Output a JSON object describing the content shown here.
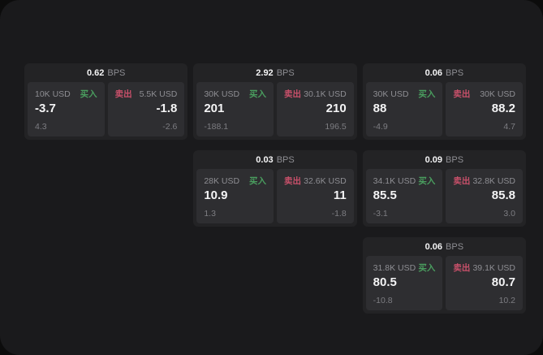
{
  "labels": {
    "bps_unit": "BPS",
    "buy": "买入",
    "sell": "卖出"
  },
  "colors": {
    "outer_background": "#0c0c0c",
    "page_background": "#1a1a1c",
    "card_background": "#232325",
    "panel_background": "#2e2e31",
    "buy_green": "#4a9e5f",
    "sell_red": "#c8506a",
    "label_gray": "#8e8e93",
    "value_white": "#f4f4f5"
  },
  "cards": [
    {
      "bps": "0.62",
      "buy": {
        "amount": "10K USD",
        "value": "-3.7",
        "sub": "4.3"
      },
      "sell": {
        "amount": "5.5K USD",
        "value": "-1.8",
        "sub": "-2.6"
      }
    },
    {
      "bps": "2.92",
      "buy": {
        "amount": "30K USD",
        "value": "201",
        "sub": "-188.1"
      },
      "sell": {
        "amount": "30.1K USD",
        "value": "210",
        "sub": "196.5"
      }
    },
    {
      "bps": "0.06",
      "buy": {
        "amount": "30K USD",
        "value": "88",
        "sub": "-4.9"
      },
      "sell": {
        "amount": "30K USD",
        "value": "88.2",
        "sub": "4.7"
      }
    },
    {
      "bps": "0.03",
      "buy": {
        "amount": "28K USD",
        "value": "10.9",
        "sub": "1.3"
      },
      "sell": {
        "amount": "32.6K USD",
        "value": "11",
        "sub": "-1.8"
      }
    },
    {
      "bps": "0.09",
      "buy": {
        "amount": "34.1K USD",
        "value": "85.5",
        "sub": "-3.1"
      },
      "sell": {
        "amount": "32.8K USD",
        "value": "85.8",
        "sub": "3.0"
      }
    },
    {
      "bps": "0.06",
      "buy": {
        "amount": "31.8K USD",
        "value": "80.5",
        "sub": "-10.8"
      },
      "sell": {
        "amount": "39.1K USD",
        "value": "80.7",
        "sub": "10.2"
      }
    }
  ]
}
